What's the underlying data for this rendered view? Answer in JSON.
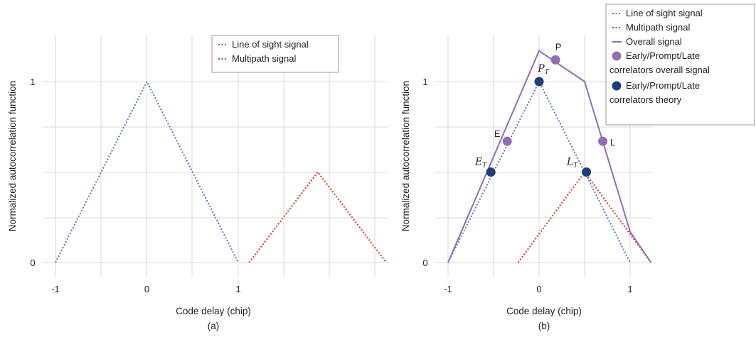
{
  "colors": {
    "line_of_sight": "#4a7ab5",
    "multipath": "#e03c31",
    "overall": "#8e6fb5",
    "correlator_overall": "#8e6fb5",
    "correlator_theory": "#1f3f78",
    "grid": "#d9d9d9"
  },
  "chart_data": [
    {
      "panel": "a",
      "type": "line",
      "caption": "(a)",
      "xlabel": "Code delay (chip)",
      "ylabel": "Normalized autocorrelation function",
      "x_ticks": [
        -1,
        0,
        1
      ],
      "x_tick_labels": [
        "-1",
        "0",
        "1"
      ],
      "y_ticks": [
        0,
        1
      ],
      "y_tick_labels": [
        "0",
        "1"
      ],
      "xlim": [
        -1.45,
        2.6
      ],
      "ylim": [
        -0.08,
        1.25
      ],
      "grid": true,
      "legend": {
        "placement": "top-right",
        "entries": [
          "Line of sight signal",
          "Multipath signal"
        ]
      },
      "series": [
        {
          "name": "Line of sight signal",
          "style": "dotted",
          "points": [
            [
              -1,
              0
            ],
            [
              0,
              1
            ],
            [
              1,
              0
            ]
          ]
        },
        {
          "name": "Multipath signal",
          "style": "dotted",
          "points": [
            [
              1.12,
              0
            ],
            [
              1.87,
              0.5
            ],
            [
              2.62,
              0
            ]
          ]
        }
      ]
    },
    {
      "panel": "b",
      "type": "line",
      "caption": "(b)",
      "xlabel": "Code delay (chip)",
      "ylabel": "Normalized autocorrelation function",
      "x_ticks": [
        -1,
        0,
        1
      ],
      "x_tick_labels": [
        "-1",
        "0",
        "1"
      ],
      "y_ticks": [
        0,
        1
      ],
      "y_tick_labels": [
        "0",
        "1"
      ],
      "xlim": [
        -1.45,
        1.7
      ],
      "ylim": [
        -0.08,
        1.25
      ],
      "grid": true,
      "legend": {
        "placement": "top-right",
        "entries": [
          "Line of sight signal",
          "Multipath signal",
          "Overall signal",
          [
            "Early/Prompt/Late",
            "correlators overall signal"
          ],
          [
            "Early/Prompt/Late",
            "correlators theory"
          ]
        ]
      },
      "series": [
        {
          "name": "Line of sight signal",
          "style": "dotted",
          "points": [
            [
              -1,
              0
            ],
            [
              0,
              1
            ],
            [
              1,
              0
            ]
          ]
        },
        {
          "name": "Multipath signal",
          "style": "dotted",
          "points": [
            [
              -0.23,
              0
            ],
            [
              0.5,
              0.5
            ],
            [
              1.23,
              0
            ]
          ]
        },
        {
          "name": "Overall signal",
          "style": "solid",
          "points": [
            [
              -1,
              0
            ],
            [
              0,
              1.17
            ],
            [
              0.5,
              1.0
            ],
            [
              1.0,
              0.17
            ],
            [
              1.23,
              0
            ]
          ]
        }
      ],
      "correlators_overall": [
        {
          "label": "E",
          "x": -0.35,
          "y": 0.67
        },
        {
          "label": "P",
          "x": 0.18,
          "y": 1.12
        },
        {
          "label": "L",
          "x": 0.7,
          "y": 0.67
        }
      ],
      "correlators_theory": [
        {
          "label": "E",
          "subscript": "T",
          "x": -0.53,
          "y": 0.5
        },
        {
          "label": "P",
          "subscript": "T",
          "x": 0.0,
          "y": 1.0
        },
        {
          "label": "L",
          "subscript": "T",
          "x": 0.52,
          "y": 0.5
        }
      ]
    }
  ]
}
